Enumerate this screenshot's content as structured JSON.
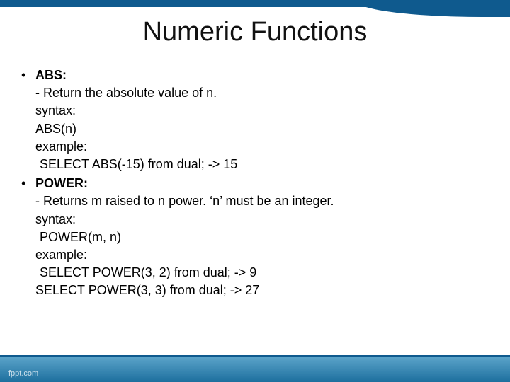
{
  "title": "Numeric Functions",
  "footer": "fppt.com",
  "colors": {
    "accent": "#0f5a8e",
    "band_top": "#5aa3c9",
    "band_bottom": "#1d6f9e",
    "text": "#000000",
    "background": "#ffffff"
  },
  "typography": {
    "title_fontsize": 38,
    "body_fontsize": 18,
    "font_family": "Arial"
  },
  "items": [
    {
      "name": "ABS:",
      "desc": "- Return the absolute value of n.",
      "syntax_label": "syntax:",
      "syntax": "ABS(n)",
      "example_label": "example:",
      "examples": [
        "SELECT ABS(-15)  from dual; -> 15"
      ]
    },
    {
      "name": "POWER:",
      "desc": " - Returns m raised to n power. ‘n’ must be an integer.",
      "syntax_label": "syntax:",
      "syntax": "POWER(m, n)",
      "example_label": "example:",
      "examples": [
        "SELECT POWER(3, 2) from dual;  -> 9",
        "SELECT POWER(3, 3) from dual;  -> 27"
      ]
    }
  ]
}
